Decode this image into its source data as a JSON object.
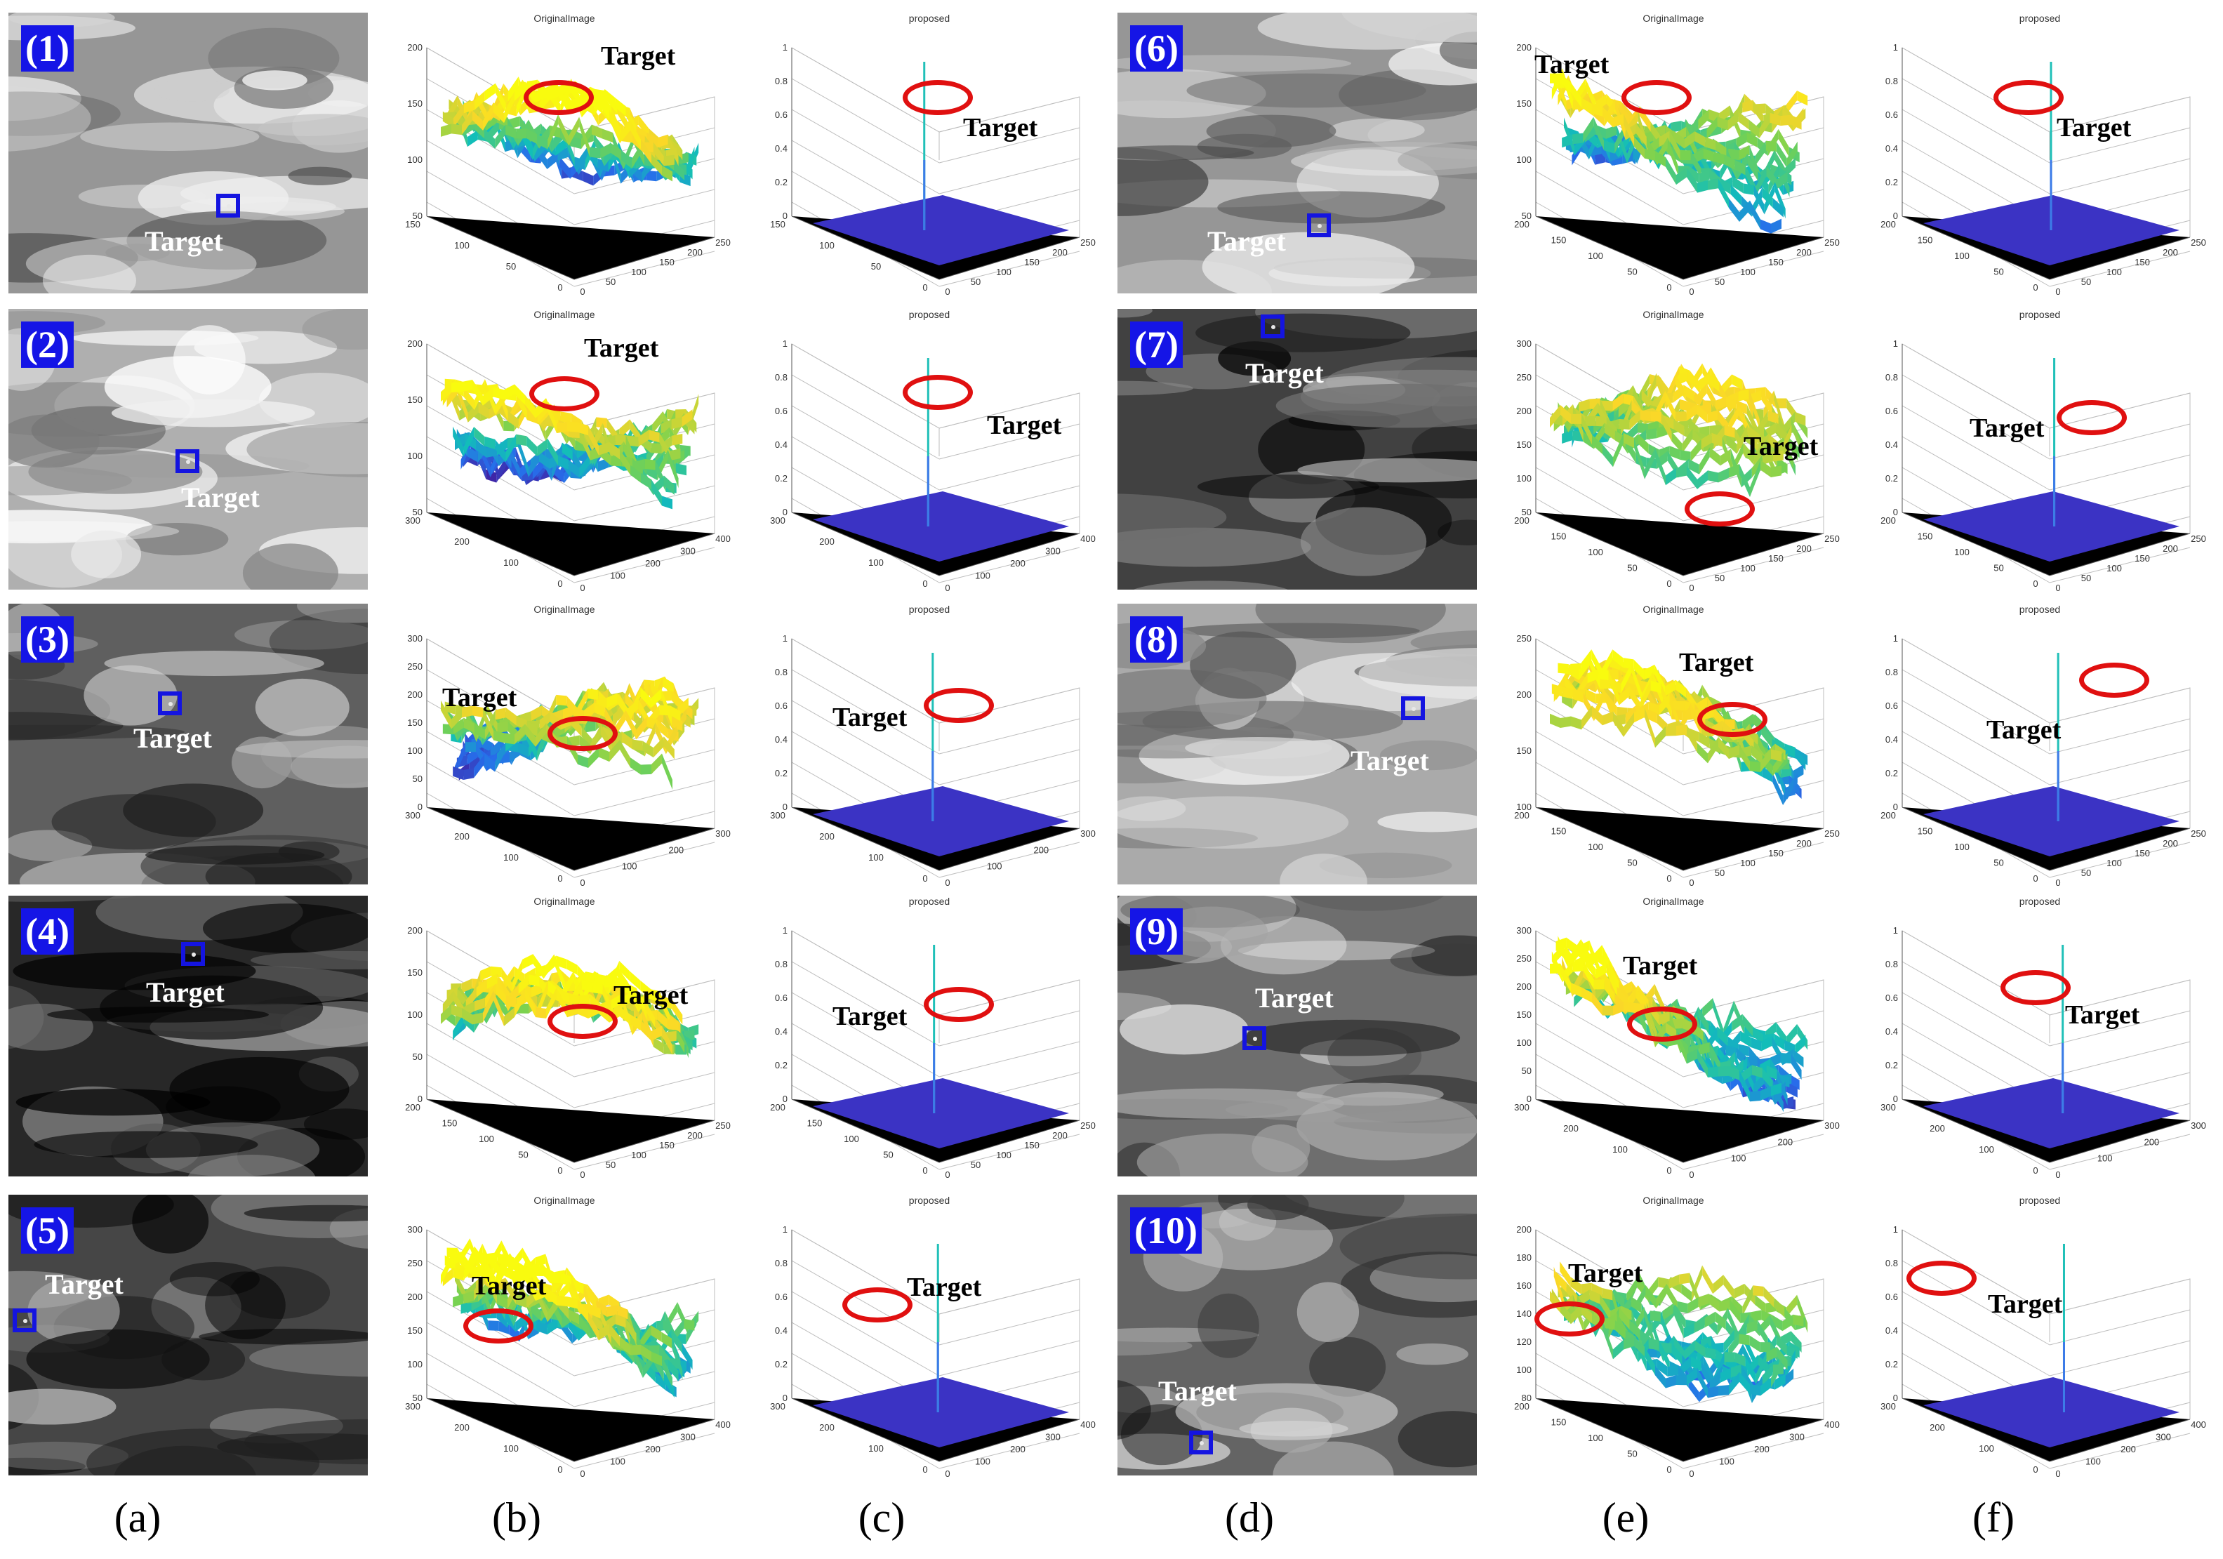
{
  "plot_titles": {
    "original": "OriginalImage",
    "proposed": "proposed"
  },
  "target_word": "Target",
  "column_labels": [
    "(a)",
    "(b)",
    "(c)",
    "(d)",
    "(e)",
    "(f)"
  ],
  "rows": [
    {
      "number": "(1)",
      "b_ticks": {
        "z": [
          "200",
          "150",
          "100",
          "50"
        ],
        "left": [
          "150",
          "100",
          "50",
          "0"
        ],
        "right": [
          "0",
          "50",
          "100",
          "150",
          "200",
          "250"
        ]
      },
      "c_ticks": {
        "z": [
          "1",
          "0.8",
          "0.6",
          "0.4",
          "0.2",
          "0"
        ],
        "left": [
          "150",
          "100",
          "50",
          "0"
        ],
        "right": [
          "0",
          "50",
          "100",
          "150",
          "200",
          "250"
        ]
      }
    },
    {
      "number": "(2)",
      "b_ticks": {
        "z": [
          "200",
          "150",
          "100",
          "50"
        ],
        "left": [
          "300",
          "200",
          "100",
          "0"
        ],
        "right": [
          "0",
          "100",
          "200",
          "300",
          "400"
        ]
      },
      "c_ticks": {
        "z": [
          "1",
          "0.8",
          "0.6",
          "0.4",
          "0.2",
          "0"
        ],
        "left": [
          "300",
          "200",
          "100",
          "0"
        ],
        "right": [
          "0",
          "100",
          "200",
          "300",
          "400"
        ]
      }
    },
    {
      "number": "(3)",
      "b_ticks": {
        "z": [
          "300",
          "250",
          "200",
          "150",
          "100",
          "50",
          "0"
        ],
        "left": [
          "300",
          "200",
          "100",
          "0"
        ],
        "right": [
          "0",
          "100",
          "200",
          "300"
        ]
      },
      "c_ticks": {
        "z": [
          "1",
          "0.8",
          "0.6",
          "0.4",
          "0.2",
          "0"
        ],
        "left": [
          "300",
          "200",
          "100",
          "0"
        ],
        "right": [
          "0",
          "100",
          "200",
          "300"
        ]
      }
    },
    {
      "number": "(4)",
      "b_ticks": {
        "z": [
          "200",
          "150",
          "100",
          "50",
          "0"
        ],
        "left": [
          "200",
          "150",
          "100",
          "50",
          "0"
        ],
        "right": [
          "0",
          "50",
          "100",
          "150",
          "200",
          "250"
        ]
      },
      "c_ticks": {
        "z": [
          "1",
          "0.8",
          "0.6",
          "0.4",
          "0.2",
          "0"
        ],
        "left": [
          "200",
          "150",
          "100",
          "50",
          "0"
        ],
        "right": [
          "0",
          "50",
          "100",
          "150",
          "200",
          "250"
        ]
      }
    },
    {
      "number": "(5)",
      "b_ticks": {
        "z": [
          "300",
          "250",
          "200",
          "150",
          "100",
          "50"
        ],
        "left": [
          "300",
          "200",
          "100",
          "0"
        ],
        "right": [
          "0",
          "100",
          "200",
          "300",
          "400"
        ]
      },
      "c_ticks": {
        "z": [
          "1",
          "0.8",
          "0.6",
          "0.4",
          "0.2",
          "0"
        ],
        "left": [
          "300",
          "200",
          "100",
          "0"
        ],
        "right": [
          "0",
          "100",
          "200",
          "300",
          "400"
        ]
      }
    },
    {
      "number": "(6)",
      "b_ticks": {
        "z": [
          "200",
          "150",
          "100",
          "50"
        ],
        "left": [
          "200",
          "150",
          "100",
          "50",
          "0"
        ],
        "right": [
          "0",
          "50",
          "100",
          "150",
          "200",
          "250"
        ]
      },
      "c_ticks": {
        "z": [
          "1",
          "0.8",
          "0.6",
          "0.4",
          "0.2",
          "0"
        ],
        "left": [
          "200",
          "150",
          "100",
          "50",
          "0"
        ],
        "right": [
          "0",
          "50",
          "100",
          "150",
          "200",
          "250"
        ]
      }
    },
    {
      "number": "(7)",
      "b_ticks": {
        "z": [
          "300",
          "250",
          "200",
          "150",
          "100",
          "50"
        ],
        "left": [
          "200",
          "150",
          "100",
          "50",
          "0"
        ],
        "right": [
          "0",
          "50",
          "100",
          "150",
          "200",
          "250"
        ]
      },
      "c_ticks": {
        "z": [
          "1",
          "0.8",
          "0.6",
          "0.4",
          "0.2",
          "0"
        ],
        "left": [
          "200",
          "150",
          "100",
          "50",
          "0"
        ],
        "right": [
          "0",
          "50",
          "100",
          "150",
          "200",
          "250"
        ]
      }
    },
    {
      "number": "(8)",
      "b_ticks": {
        "z": [
          "250",
          "200",
          "150",
          "100"
        ],
        "left": [
          "200",
          "150",
          "100",
          "50",
          "0"
        ],
        "right": [
          "0",
          "50",
          "100",
          "150",
          "200",
          "250"
        ]
      },
      "c_ticks": {
        "z": [
          "1",
          "0.8",
          "0.6",
          "0.4",
          "0.2",
          "0"
        ],
        "left": [
          "200",
          "150",
          "100",
          "50",
          "0"
        ],
        "right": [
          "0",
          "50",
          "100",
          "150",
          "200",
          "250"
        ]
      }
    },
    {
      "number": "(9)",
      "b_ticks": {
        "z": [
          "300",
          "250",
          "200",
          "150",
          "100",
          "50",
          "0"
        ],
        "left": [
          "300",
          "200",
          "100",
          "0"
        ],
        "right": [
          "0",
          "100",
          "200",
          "300"
        ]
      },
      "c_ticks": {
        "z": [
          "1",
          "0.8",
          "0.6",
          "0.4",
          "0.2",
          "0"
        ],
        "left": [
          "300",
          "200",
          "100",
          "0"
        ],
        "right": [
          "0",
          "100",
          "200",
          "300"
        ]
      }
    },
    {
      "number": "(10)",
      "b_ticks": {
        "z": [
          "200",
          "180",
          "160",
          "140",
          "120",
          "100",
          "80"
        ],
        "left": [
          "200",
          "150",
          "100",
          "50",
          "0"
        ],
        "right": [
          "0",
          "100",
          "200",
          "300",
          "400"
        ]
      },
      "c_ticks": {
        "z": [
          "1",
          "0.8",
          "0.6",
          "0.4",
          "0.2",
          "0"
        ],
        "left": [
          "300",
          "200",
          "100",
          "0"
        ],
        "right": [
          "0",
          "100",
          "200",
          "300",
          "400"
        ]
      }
    }
  ],
  "colors": {
    "number_badge": "#1515e6",
    "target_box": "#1414e0",
    "ring": "#e01010",
    "floor": "#3b33c4"
  }
}
